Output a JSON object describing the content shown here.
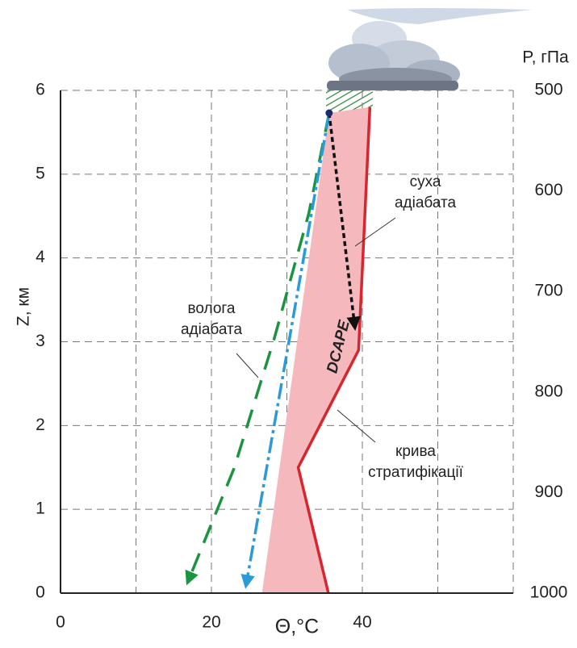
{
  "chart_data": {
    "type": "line",
    "x_label": "Θ,°C",
    "y_label": "Z, км",
    "y2_label": "P, гПа",
    "xlim": [
      0,
      60
    ],
    "xticks": [
      0,
      20,
      40
    ],
    "xgrid_ticks": [
      10,
      20,
      30,
      40,
      50,
      60
    ],
    "ylim": [
      0,
      6
    ],
    "yticks": [
      0,
      1,
      2,
      3,
      4,
      5,
      6
    ],
    "y2lim": [
      1000,
      500
    ],
    "y2ticks": [
      500,
      600,
      700,
      800,
      900,
      1000
    ],
    "grid": true,
    "series": [
      {
        "color": "#d7262e",
        "dash": "none",
        "arrow": false,
        "x": [
          35.5,
          31.5,
          39.5,
          41
        ],
        "values": [
          0,
          1.5,
          2.9,
          5.8
        ]
      },
      {
        "color": "#1a9440",
        "dash": "24,14",
        "arrow": true,
        "x": [
          35.6,
          32.9,
          28.3,
          23.0,
          16.9
        ],
        "values": [
          5.73,
          4.53,
          3.03,
          1.49,
          0.14
        ]
      },
      {
        "color": "#2a9bd8",
        "dash": "20,5,4,5",
        "arrow": true,
        "x": [
          35.6,
          24.6
        ],
        "values": [
          5.73,
          0.1
        ]
      },
      {
        "color": "#111111",
        "dash": "6,4",
        "arrow": true,
        "x": [
          35.6,
          39.0
        ],
        "values": [
          5.73,
          3.18
        ]
      }
    ],
    "area": {
      "color": "#f5b8bd",
      "x": [
        35.6,
        26.7
      ],
      "values": [
        5.73,
        0
      ]
    },
    "area_label": "DCAPE",
    "annotations": [
      {
        "lines": [
          "суха",
          "адіабата"
        ]
      },
      {
        "lines": [
          "волога",
          "адіабата"
        ]
      },
      {
        "lines": [
          "крива",
          "стратифікації"
        ]
      }
    ]
  }
}
